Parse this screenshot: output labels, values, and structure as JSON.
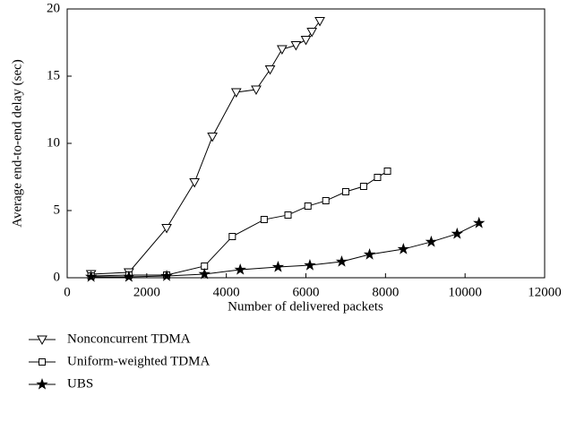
{
  "chart_data": {
    "type": "line",
    "xlabel": "Number of delivered packets",
    "ylabel": "Average end-to-end delay (sec)",
    "xlim": [
      0,
      12000
    ],
    "xticks": [
      0,
      2000,
      4000,
      6000,
      8000,
      10000,
      12000
    ],
    "ylim": [
      0,
      20
    ],
    "yticks": [
      0,
      5,
      10,
      15,
      20
    ],
    "legend": "bottom-left",
    "series": [
      {
        "name": "Nonconcurrent TDMA",
        "color": "#000000",
        "marker": "triangle-down",
        "x": [
          600,
          1550,
          2500,
          3200,
          3650,
          4250,
          4750,
          5100,
          5400,
          5750,
          6000,
          6150,
          6350
        ],
        "values": [
          0.27,
          0.4,
          3.7,
          7.1,
          10.5,
          13.8,
          14.0,
          15.5,
          17.0,
          17.3,
          17.7,
          18.3,
          19.1
        ]
      },
      {
        "name": "Uniform-weighted TDMA",
        "color": "#000000",
        "marker": "square",
        "x": [
          600,
          1550,
          2500,
          3450,
          4150,
          4950,
          5550,
          6050,
          6500,
          7000,
          7450,
          7800,
          8050
        ],
        "values": [
          0.13,
          0.2,
          0.2,
          0.87,
          3.07,
          4.33,
          4.67,
          5.33,
          5.73,
          6.4,
          6.8,
          7.47,
          7.93
        ]
      },
      {
        "name": "UBS",
        "color": "#000000",
        "marker": "star",
        "x": [
          600,
          1550,
          2500,
          3450,
          4350,
          5300,
          6100,
          6900,
          7600,
          8450,
          9150,
          9800,
          10350
        ],
        "values": [
          0.07,
          0.07,
          0.13,
          0.27,
          0.6,
          0.8,
          0.93,
          1.2,
          1.73,
          2.13,
          2.67,
          3.27,
          4.07
        ]
      }
    ]
  }
}
